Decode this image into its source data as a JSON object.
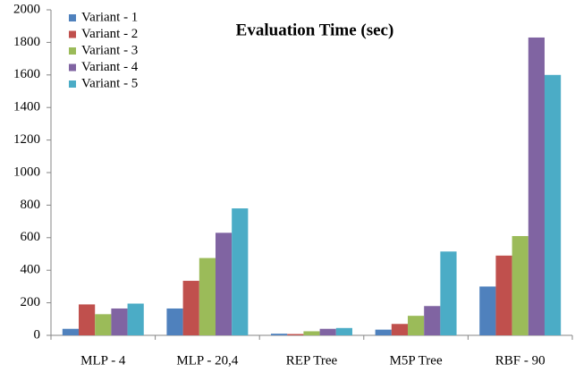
{
  "chart_data": {
    "type": "bar",
    "title": "Evaluation Time (sec)",
    "categories": [
      "MLP - 4",
      "MLP - 20,4",
      "REP Tree",
      "M5P Tree",
      "RBF - 90"
    ],
    "series": [
      {
        "name": "Variant - 1",
        "color": "#4f81bd",
        "values": [
          40,
          165,
          10,
          35,
          300
        ]
      },
      {
        "name": "Variant - 2",
        "color": "#c0504d",
        "values": [
          190,
          335,
          8,
          70,
          490
        ]
      },
      {
        "name": "Variant - 3",
        "color": "#9bbb59",
        "values": [
          130,
          475,
          25,
          120,
          610
        ]
      },
      {
        "name": "Variant - 4",
        "color": "#8064a2",
        "values": [
          165,
          630,
          40,
          180,
          1830
        ]
      },
      {
        "name": "Variant - 5",
        "color": "#4bacc6",
        "values": [
          195,
          780,
          45,
          515,
          1600
        ]
      }
    ],
    "ylim": [
      0,
      2000
    ],
    "yticks": [
      0,
      200,
      400,
      600,
      800,
      1000,
      1200,
      1400,
      1600,
      1800,
      2000
    ],
    "grid": false,
    "legend": "top-left"
  }
}
